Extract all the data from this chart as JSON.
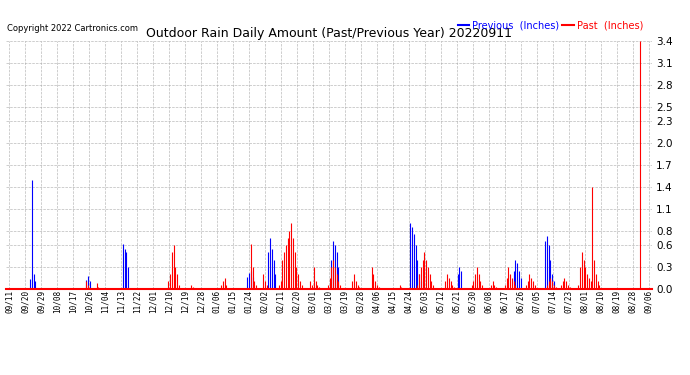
{
  "title": "Outdoor Rain Daily Amount (Past/Previous Year) 20220911",
  "copyright": "Copyright 2022 Cartronics.com",
  "legend_previous": "Previous  (Inches)",
  "legend_past": "Past  (Inches)",
  "color_previous": "#0000ff",
  "color_past": "#ff0000",
  "background_color": "#ffffff",
  "grid_color": "#aaaaaa",
  "ylim": [
    0.0,
    3.4
  ],
  "yticks": [
    0.0,
    0.3,
    0.6,
    0.8,
    1.1,
    1.4,
    1.7,
    2.0,
    2.3,
    2.5,
    2.8,
    3.1,
    3.4
  ],
  "xtick_labels": [
    "09/11",
    "09/20",
    "09/29",
    "10/08",
    "10/17",
    "10/26",
    "11/04",
    "11/13",
    "11/22",
    "12/01",
    "12/10",
    "12/19",
    "12/28",
    "01/06",
    "01/15",
    "01/24",
    "02/02",
    "02/11",
    "02/20",
    "03/01",
    "03/10",
    "03/19",
    "03/28",
    "04/06",
    "04/15",
    "04/24",
    "05/03",
    "05/12",
    "05/21",
    "05/30",
    "06/08",
    "06/17",
    "06/26",
    "07/05",
    "07/14",
    "07/23",
    "08/01",
    "08/10",
    "08/19",
    "08/28",
    "09/06"
  ],
  "n_points": 366,
  "previous_data": [
    0.0,
    0.0,
    0.0,
    0.0,
    0.0,
    0.0,
    0.0,
    0.0,
    0.0,
    0.0,
    0.0,
    0.0,
    0.14,
    1.5,
    0.2,
    0.1,
    0.0,
    0.0,
    0.0,
    0.0,
    0.0,
    0.0,
    0.0,
    0.0,
    0.0,
    0.0,
    0.0,
    0.0,
    0.0,
    0.0,
    0.0,
    0.0,
    0.0,
    0.0,
    0.0,
    0.0,
    0.0,
    0.0,
    0.0,
    0.0,
    0.0,
    0.0,
    0.0,
    0.0,
    0.12,
    0.18,
    0.1,
    0.0,
    0.0,
    0.0,
    0.0,
    0.0,
    0.0,
    0.0,
    0.0,
    0.0,
    0.0,
    0.0,
    0.0,
    0.0,
    0.0,
    0.0,
    0.0,
    0.0,
    0.0,
    0.62,
    0.55,
    0.5,
    0.3,
    0.0,
    0.0,
    0.0,
    0.0,
    0.0,
    0.0,
    0.0,
    0.0,
    0.0,
    0.0,
    0.0,
    0.0,
    0.0,
    0.0,
    0.0,
    0.0,
    0.0,
    0.0,
    0.0,
    0.0,
    0.0,
    0.0,
    0.0,
    0.0,
    0.0,
    0.0,
    0.0,
    0.0,
    0.0,
    0.0,
    0.0,
    0.0,
    0.0,
    0.0,
    0.0,
    0.0,
    0.0,
    0.0,
    0.0,
    0.0,
    0.0,
    0.0,
    0.0,
    0.0,
    0.0,
    0.0,
    0.0,
    0.0,
    0.0,
    0.0,
    0.0,
    0.0,
    0.0,
    0.0,
    0.0,
    0.0,
    0.0,
    0.0,
    0.0,
    0.0,
    0.0,
    0.0,
    0.0,
    0.0,
    0.0,
    0.0,
    0.0,
    0.16,
    0.22,
    0.25,
    0.16,
    0.0,
    0.0,
    0.0,
    0.0,
    0.0,
    0.0,
    0.0,
    0.0,
    0.5,
    0.7,
    0.55,
    0.4,
    0.2,
    0.0,
    0.0,
    0.0,
    0.0,
    0.0,
    0.0,
    0.0,
    0.0,
    0.0,
    0.0,
    0.0,
    0.0,
    0.0,
    0.0,
    0.0,
    0.0,
    0.0,
    0.0,
    0.0,
    0.0,
    0.0,
    0.0,
    0.0,
    0.0,
    0.0,
    0.0,
    0.0,
    0.0,
    0.0,
    0.0,
    0.0,
    0.4,
    0.65,
    0.6,
    0.5,
    0.3,
    0.0,
    0.0,
    0.0,
    0.0,
    0.0,
    0.0,
    0.0,
    0.0,
    0.0,
    0.0,
    0.0,
    0.0,
    0.0,
    0.0,
    0.0,
    0.0,
    0.0,
    0.0,
    0.0,
    0.0,
    0.0,
    0.0,
    0.0,
    0.0,
    0.0,
    0.0,
    0.0,
    0.0,
    0.0,
    0.0,
    0.0,
    0.0,
    0.0,
    0.0,
    0.0,
    0.0,
    0.0,
    0.0,
    0.0,
    0.0,
    0.9,
    0.85,
    0.75,
    0.6,
    0.4,
    0.2,
    0.1,
    0.0,
    0.0,
    0.0,
    0.0,
    0.0,
    0.0,
    0.0,
    0.0,
    0.0,
    0.0,
    0.0,
    0.0,
    0.0,
    0.0,
    0.0,
    0.0,
    0.0,
    0.0,
    0.0,
    0.0,
    0.2,
    0.3,
    0.25,
    0.0,
    0.0,
    0.0,
    0.0,
    0.0,
    0.0,
    0.0,
    0.0,
    0.0,
    0.0,
    0.0,
    0.0,
    0.0,
    0.0,
    0.0,
    0.0,
    0.0,
    0.0,
    0.0,
    0.0,
    0.0,
    0.0,
    0.0,
    0.0,
    0.0,
    0.0,
    0.0,
    0.0,
    0.0,
    0.25,
    0.4,
    0.35,
    0.25,
    0.15,
    0.0,
    0.0,
    0.0,
    0.0,
    0.0,
    0.0,
    0.0,
    0.0,
    0.0,
    0.0,
    0.0,
    0.0,
    0.0,
    0.65,
    0.72,
    0.6,
    0.4,
    0.2,
    0.1,
    0.0,
    0.0,
    0.0,
    0.0,
    0.0,
    0.0,
    0.0,
    0.0,
    0.0,
    0.0,
    0.0,
    0.0,
    0.0,
    0.0,
    0.0,
    0.0,
    0.0,
    0.0,
    0.0,
    0.0,
    0.0,
    0.0,
    0.0,
    0.0,
    0.0,
    0.0,
    0.0,
    0.0,
    0.0,
    0.0,
    0.0,
    0.0,
    0.0,
    0.0,
    0.0,
    0.0,
    0.0,
    0.0,
    0.0,
    0.0,
    0.0,
    0.0,
    0.0,
    0.0,
    0.0,
    0.0,
    0.0,
    0.0,
    0.0,
    0.0,
    0.0,
    0.0,
    0.0,
    0.0
  ],
  "past_data": [
    0.0,
    0.0,
    0.0,
    0.0,
    0.0,
    0.0,
    0.0,
    0.0,
    0.0,
    0.0,
    0.0,
    0.0,
    0.0,
    0.0,
    0.0,
    0.0,
    0.0,
    0.0,
    0.0,
    0.0,
    0.0,
    0.0,
    0.0,
    0.0,
    0.0,
    0.0,
    0.0,
    0.0,
    0.0,
    0.0,
    0.0,
    0.0,
    0.0,
    0.0,
    0.0,
    0.0,
    0.0,
    0.0,
    0.0,
    0.0,
    0.0,
    0.0,
    0.0,
    0.0,
    0.1,
    0.05,
    0.0,
    0.0,
    0.0,
    0.0,
    0.08,
    0.02,
    0.01,
    0.0,
    0.0,
    0.0,
    0.0,
    0.0,
    0.0,
    0.0,
    0.0,
    0.0,
    0.0,
    0.0,
    0.0,
    0.0,
    0.0,
    0.0,
    0.0,
    0.0,
    0.0,
    0.0,
    0.0,
    0.0,
    0.0,
    0.0,
    0.0,
    0.0,
    0.0,
    0.0,
    0.0,
    0.0,
    0.0,
    0.0,
    0.0,
    0.0,
    0.0,
    0.0,
    0.0,
    0.0,
    0.0,
    0.1,
    0.2,
    0.5,
    0.6,
    0.3,
    0.2,
    0.05,
    0.0,
    0.0,
    0.0,
    0.0,
    0.0,
    0.0,
    0.05,
    0.02,
    0.0,
    0.0,
    0.0,
    0.0,
    0.0,
    0.0,
    0.0,
    0.0,
    0.0,
    0.0,
    0.0,
    0.0,
    0.0,
    0.0,
    0.0,
    0.05,
    0.1,
    0.15,
    0.05,
    0.0,
    0.0,
    0.0,
    0.0,
    0.0,
    0.0,
    0.0,
    0.0,
    0.0,
    0.0,
    0.0,
    0.0,
    0.0,
    0.62,
    0.3,
    0.1,
    0.05,
    0.0,
    0.0,
    0.0,
    0.2,
    0.1,
    0.05,
    0.0,
    0.0,
    0.0,
    0.0,
    0.0,
    0.0,
    0.05,
    0.1,
    0.4,
    0.5,
    0.6,
    0.7,
    0.8,
    0.9,
    0.7,
    0.5,
    0.3,
    0.2,
    0.1,
    0.05,
    0.0,
    0.0,
    0.0,
    0.0,
    0.1,
    0.05,
    0.3,
    0.1,
    0.05,
    0.02,
    0.0,
    0.0,
    0.0,
    0.0,
    0.05,
    0.15,
    0.3,
    0.4,
    0.3,
    0.2,
    0.1,
    0.05,
    0.0,
    0.0,
    0.0,
    0.0,
    0.0,
    0.0,
    0.1,
    0.2,
    0.1,
    0.05,
    0.02,
    0.0,
    0.0,
    0.0,
    0.0,
    0.0,
    0.0,
    0.3,
    0.2,
    0.1,
    0.05,
    0.02,
    0.0,
    0.0,
    0.0,
    0.0,
    0.0,
    0.0,
    0.0,
    0.0,
    0.0,
    0.0,
    0.0,
    0.05,
    0.02,
    0.0,
    0.0,
    0.0,
    0.0,
    0.0,
    0.0,
    0.0,
    0.0,
    0.05,
    0.2,
    0.3,
    0.4,
    0.5,
    0.4,
    0.3,
    0.2,
    0.1,
    0.05,
    0.0,
    0.0,
    0.0,
    0.0,
    0.0,
    0.0,
    0.1,
    0.2,
    0.15,
    0.1,
    0.05,
    0.02,
    0.0,
    0.0,
    0.0,
    0.0,
    0.0,
    0.0,
    0.0,
    0.0,
    0.0,
    0.05,
    0.1,
    0.2,
    0.3,
    0.2,
    0.1,
    0.05,
    0.0,
    0.0,
    0.0,
    0.0,
    0.05,
    0.1,
    0.05,
    0.02,
    0.0,
    0.0,
    0.0,
    0.0,
    0.05,
    0.15,
    0.3,
    0.2,
    0.15,
    0.1,
    0.05,
    0.0,
    0.0,
    0.0,
    0.0,
    0.0,
    0.05,
    0.1,
    0.2,
    0.15,
    0.1,
    0.05,
    0.0,
    0.0,
    0.0,
    0.0,
    0.0,
    0.0,
    0.05,
    0.1,
    0.15,
    0.1,
    0.05,
    0.02,
    0.0,
    0.0,
    0.05,
    0.1,
    0.15,
    0.1,
    0.05,
    0.02,
    0.0,
    0.0,
    0.0,
    0.0,
    0.05,
    0.3,
    0.5,
    0.4,
    0.3,
    0.2,
    0.15,
    0.1,
    1.4,
    0.4,
    0.2,
    0.1,
    0.05,
    0.0,
    0.0,
    0.0,
    0.0,
    0.0,
    0.0,
    0.0,
    0.0,
    0.0,
    0.0,
    0.0,
    0.0,
    0.0,
    0.0,
    0.0,
    0.0,
    0.0,
    0.0,
    0.0,
    0.0,
    0.0,
    0.0,
    3.4
  ]
}
